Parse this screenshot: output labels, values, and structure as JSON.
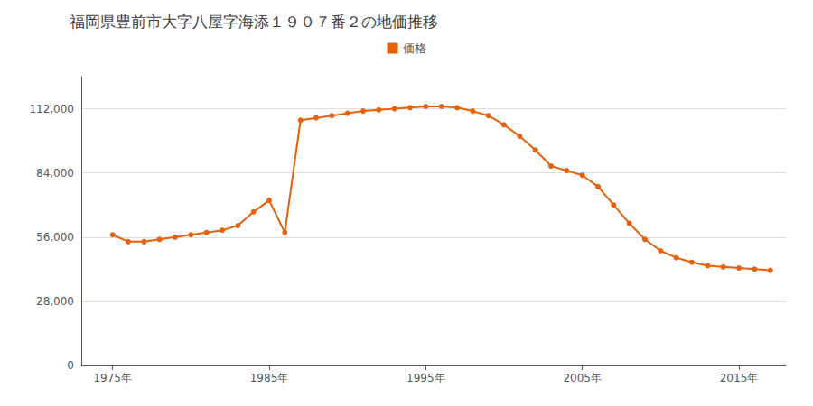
{
  "chart_data": {
    "type": "line",
    "title": "福岡県豊前市大字八屋字海添１９０７番２の地価推移",
    "x": [
      1975,
      1976,
      1977,
      1978,
      1979,
      1980,
      1981,
      1982,
      1983,
      1984,
      1985,
      1986,
      1987,
      1988,
      1989,
      1990,
      1991,
      1992,
      1993,
      1994,
      1995,
      1996,
      1997,
      1998,
      1999,
      2000,
      2001,
      2002,
      2003,
      2004,
      2005,
      2006,
      2007,
      2008,
      2009,
      2010,
      2011,
      2012,
      2013,
      2014,
      2015,
      2016,
      2017
    ],
    "series": [
      {
        "name": "価格",
        "color": "#e8600a",
        "marker": "o",
        "values": [
          57000,
          54000,
          54000,
          55000,
          56000,
          57000,
          58000,
          59000,
          61000,
          67000,
          72000,
          58000,
          107000,
          108000,
          109000,
          110000,
          111000,
          111500,
          112000,
          112500,
          113000,
          113000,
          112500,
          111000,
          109000,
          105000,
          100000,
          94000,
          87000,
          85000,
          83000,
          78000,
          70000,
          62000,
          55000,
          50000,
          47000,
          45000,
          43500,
          43000,
          42500,
          42000,
          41500
        ]
      }
    ],
    "xlim": [
      1973,
      2018
    ],
    "xticks": [
      {
        "value": 1975,
        "label": "1975年"
      },
      {
        "value": 1985,
        "label": "1985年"
      },
      {
        "value": 1995,
        "label": "1995年"
      },
      {
        "value": 2005,
        "label": "2005年"
      },
      {
        "value": 2015,
        "label": "2015年"
      }
    ],
    "ylim": [
      0,
      126000
    ],
    "yticks": [
      0,
      {
        "value": 28000,
        "label": "28,000"
      },
      {
        "value": 56000,
        "label": "56,000"
      },
      {
        "value": 84000,
        "label": "84,000"
      },
      {
        "value": 112000,
        "label": "112,000"
      }
    ],
    "grid": true,
    "legend": "top"
  }
}
